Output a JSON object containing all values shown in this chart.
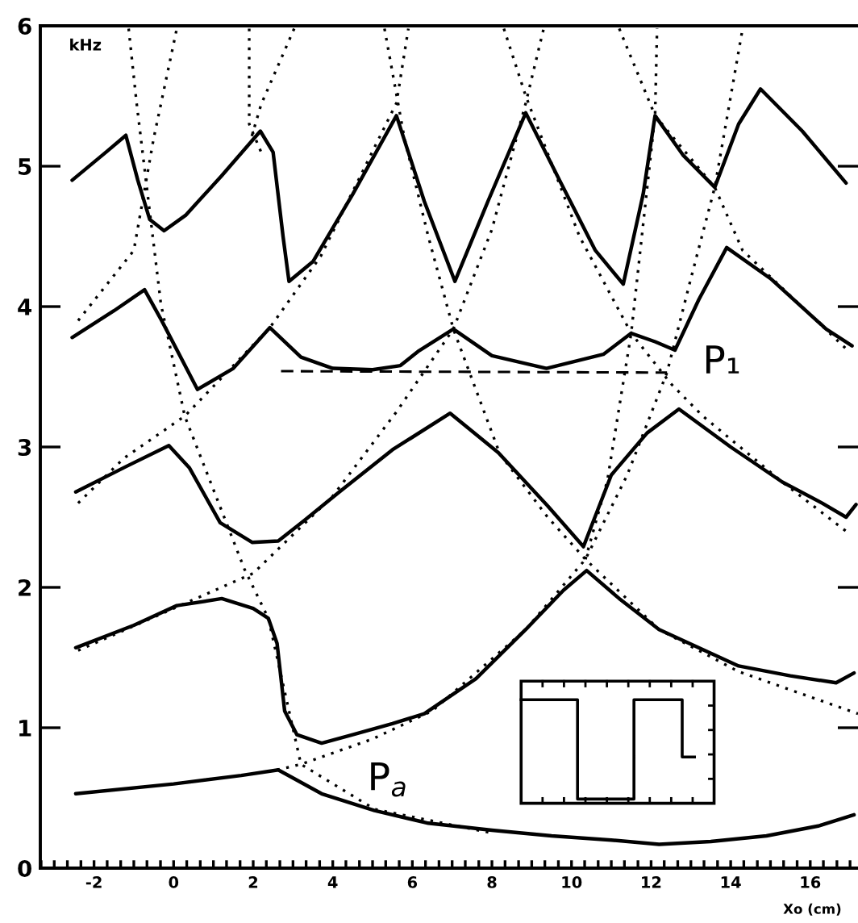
{
  "chart_data": {
    "type": "line",
    "xlabel": "Xo (cm)",
    "ylabel": "kHz",
    "xlim": [
      -3.35,
      17.2
    ],
    "ylim": [
      0,
      6
    ],
    "xticks": [
      {
        "value": -3.33,
        "label": null
      },
      {
        "value": -3,
        "label": null
      },
      {
        "value": -2.67,
        "label": null
      },
      {
        "value": -2.33,
        "label": null
      },
      -2,
      {
        "value": -1.67,
        "label": null
      },
      {
        "value": -1.33,
        "label": null
      },
      {
        "value": -1,
        "label": null
      },
      {
        "value": -0.67,
        "label": null
      },
      {
        "value": -0.33,
        "label": null
      },
      0,
      {
        "value": 0.33,
        "label": null
      },
      {
        "value": 0.67,
        "label": null
      },
      {
        "value": 1,
        "label": null
      },
      {
        "value": 1.33,
        "label": null
      },
      {
        "value": 1.67,
        "label": null
      },
      2,
      {
        "value": 2.33,
        "label": null
      },
      {
        "value": 2.67,
        "label": null
      },
      {
        "value": 3,
        "label": null
      },
      {
        "value": 3.33,
        "label": null
      },
      {
        "value": 3.67,
        "label": null
      },
      4,
      {
        "value": 4.33,
        "label": null
      },
      {
        "value": 4.67,
        "label": null
      },
      {
        "value": 5,
        "label": null
      },
      {
        "value": 5.33,
        "label": null
      },
      {
        "value": 5.67,
        "label": null
      },
      6,
      {
        "value": 6.33,
        "label": null
      },
      {
        "value": 6.67,
        "label": null
      },
      {
        "value": 7,
        "label": null
      },
      {
        "value": 7.33,
        "label": null
      },
      {
        "value": 7.67,
        "label": null
      },
      8,
      {
        "value": 8.33,
        "label": null
      },
      {
        "value": 8.67,
        "label": null
      },
      {
        "value": 9,
        "label": null
      },
      {
        "value": 9.33,
        "label": null
      },
      {
        "value": 9.67,
        "label": null
      },
      10,
      {
        "value": 10.33,
        "label": null
      },
      {
        "value": 10.67,
        "label": null
      },
      {
        "value": 11,
        "label": null
      },
      {
        "value": 11.33,
        "label": null
      },
      {
        "value": 11.67,
        "label": null
      },
      12,
      {
        "value": 12.33,
        "label": null
      },
      {
        "value": 12.67,
        "label": null
      },
      {
        "value": 13,
        "label": null
      },
      {
        "value": 13.33,
        "label": null
      },
      {
        "value": 13.67,
        "label": null
      },
      14,
      {
        "value": 14.33,
        "label": null
      },
      {
        "value": 14.67,
        "label": null
      },
      {
        "value": 15,
        "label": null
      },
      {
        "value": 15.33,
        "label": null
      },
      {
        "value": 15.67,
        "label": null
      },
      16,
      {
        "value": 16.33,
        "label": null
      },
      {
        "value": 16.67,
        "label": null
      },
      {
        "value": 17,
        "label": null
      }
    ],
    "yticks": [
      0,
      1,
      2,
      3,
      4,
      5,
      6
    ],
    "grid": false,
    "legend": false,
    "annotations": [
      "P₁",
      "P$_{a}$"
    ],
    "series": [
      {
        "line_style": "solid",
        "color": "#000000",
        "x": [
          -2.46,
          0,
          1.7,
          2.63,
          3.72,
          5.05,
          6.4,
          8,
          9.5,
          11,
          12.2,
          13.5,
          14.9,
          16.2,
          17.1
        ],
        "values": [
          0.53,
          0.6,
          0.66,
          0.7,
          0.53,
          0.41,
          0.32,
          0.27,
          0.23,
          0.2,
          0.17,
          0.19,
          0.23,
          0.3,
          0.38
        ]
      },
      {
        "line_style": "solid",
        "color": "#000000",
        "x": [
          -2.46,
          -1,
          0.08,
          1.21,
          2.0,
          2.38,
          2.6,
          2.79,
          3.1,
          3.72,
          4.5,
          5.5,
          6.3,
          7.6,
          8.85,
          9.8,
          10.38,
          11.2,
          12.2,
          14.2,
          15.5,
          16.65,
          17.1
        ],
        "values": [
          1.57,
          1.73,
          1.87,
          1.92,
          1.85,
          1.78,
          1.6,
          1.12,
          0.95,
          0.89,
          0.95,
          1.03,
          1.1,
          1.35,
          1.7,
          1.98,
          2.12,
          1.92,
          1.7,
          1.44,
          1.37,
          1.32,
          1.39
        ]
      },
      {
        "line_style": "solid",
        "color": "#000000",
        "x": [
          -2.46,
          -1.2,
          -0.12,
          0.4,
          1.17,
          1.98,
          2.63,
          3.3,
          4.12,
          5.5,
          6.95,
          8.16,
          9.4,
          10.3,
          11.0,
          11.9,
          12.7,
          14.0,
          15.3,
          16.3,
          16.9,
          17.15
        ],
        "values": [
          2.68,
          2.86,
          3.01,
          2.85,
          2.46,
          2.32,
          2.33,
          2.48,
          2.67,
          2.98,
          3.24,
          2.96,
          2.58,
          2.29,
          2.8,
          3.1,
          3.27,
          3.0,
          2.75,
          2.6,
          2.5,
          2.59
        ]
      },
      {
        "line_style": "solid",
        "color": "#000000",
        "x": [
          -2.55,
          -1.5,
          -0.73,
          -0.3,
          0.6,
          1.5,
          2.42,
          3.2,
          4.0,
          5.0,
          5.7,
          6.14,
          7.03,
          8.0,
          9.37,
          10.8,
          11.5,
          12.1,
          12.6,
          13.2,
          13.9,
          15.0,
          16.4,
          17.05
        ],
        "values": [
          3.78,
          3.97,
          4.12,
          3.9,
          3.41,
          3.56,
          3.85,
          3.64,
          3.56,
          3.55,
          3.58,
          3.68,
          3.84,
          3.65,
          3.56,
          3.66,
          3.81,
          3.75,
          3.69,
          4.05,
          4.42,
          4.2,
          3.84,
          3.72
        ]
      },
      {
        "line_style": "solid",
        "color": "#000000",
        "x": [
          -2.55,
          -1.7,
          -1.2,
          -0.9,
          -0.6,
          -0.24,
          0.3,
          1.2,
          2.18,
          2.5,
          2.75,
          2.9,
          3.5,
          4.5,
          5.6,
          6.3,
          7.07,
          7.9,
          8.85,
          9.7,
          10.6,
          11.3,
          11.8,
          12.1,
          12.8,
          13.6,
          14.2,
          14.75,
          15.8,
          16.9
        ],
        "values": [
          4.9,
          5.1,
          5.22,
          4.9,
          4.62,
          4.54,
          4.65,
          4.93,
          5.25,
          5.1,
          4.5,
          4.18,
          4.32,
          4.8,
          5.36,
          4.75,
          4.18,
          4.75,
          5.38,
          4.9,
          4.4,
          4.16,
          4.8,
          5.36,
          5.08,
          4.85,
          5.3,
          5.55,
          5.25,
          4.88
        ]
      },
      {
        "line_style": "dashed",
        "color": "#000000",
        "x": [
          2.7,
          12.4
        ],
        "values": [
          3.54,
          3.53
        ]
      },
      {
        "line_style": "dotted",
        "color": "#000000",
        "x": [
          -2.4,
          0,
          2,
          4,
          5.6,
          7.03,
          8.0,
          8.85,
          9.3
        ],
        "values": [
          1.55,
          1.85,
          2.1,
          2.65,
          3.25,
          3.84,
          4.55,
          5.45,
          5.98
        ]
      },
      {
        "line_style": "dotted",
        "color": "#000000",
        "x": [
          5.3,
          5.8,
          6.4,
          7.03,
          8.2,
          9.4,
          10.35,
          12.2,
          14.2,
          17.2
        ],
        "values": [
          5.98,
          5.2,
          4.5,
          3.84,
          2.95,
          2.5,
          2.2,
          1.7,
          1.4,
          1.1
        ]
      },
      {
        "line_style": "dotted",
        "color": "#000000",
        "x": [
          2.6,
          3.2,
          5,
          6.5,
          8.85,
          10.35,
          11.4,
          12.4,
          13.0,
          13.6,
          14.3
        ],
        "values": [
          0.7,
          0.74,
          0.92,
          1.12,
          1.7,
          2.2,
          2.8,
          3.53,
          4.2,
          4.85,
          5.98
        ]
      },
      {
        "line_style": "dotted",
        "color": "#000000",
        "x": [
          -1.13,
          -0.93,
          -0.32,
          0.28,
          1.78,
          2.38,
          3.2,
          5.05,
          8
        ],
        "values": [
          5.98,
          5.45,
          4.02,
          3.22,
          2.13,
          1.78,
          0.74,
          0.42,
          0.25
        ]
      },
      {
        "line_style": "dotted",
        "color": "#000000",
        "x": [
          -2.4,
          -1.25,
          0.28,
          2.42,
          3.7,
          5.6,
          5.9
        ],
        "values": [
          2.6,
          2.92,
          3.22,
          3.85,
          4.36,
          5.45,
          5.98
        ]
      },
      {
        "line_style": "dotted",
        "color": "#000000",
        "x": [
          -2.4,
          -1.0,
          -0.5,
          0.08
        ],
        "values": [
          3.9,
          4.4,
          5.2,
          5.98
        ]
      },
      {
        "line_style": "dotted",
        "color": "#000000",
        "x": [
          3.03,
          2.2,
          1.95
        ],
        "values": [
          5.98,
          5.44,
          5.2
        ]
      },
      {
        "line_style": "dotted",
        "color": "#000000",
        "x": [
          1.9,
          1.9,
          2.2
        ],
        "values": [
          5.98,
          5.3,
          5.1
        ]
      },
      {
        "line_style": "dotted",
        "color": "#000000",
        "x": [
          8.3,
          8.85,
          10.2,
          11.5,
          12.5,
          13.3,
          15.3,
          16.9
        ],
        "values": [
          5.98,
          5.5,
          4.5,
          3.81,
          3.45,
          3.22,
          2.75,
          2.4
        ]
      },
      {
        "line_style": "dotted",
        "color": "#000000",
        "x": [
          10.35,
          10.9,
          11.5,
          12.1,
          12.15
        ],
        "values": [
          2.2,
          2.76,
          3.81,
          5.36,
          5.98
        ]
      },
      {
        "line_style": "dotted",
        "color": "#000000",
        "x": [
          11.2,
          12.1,
          13.6,
          14.3,
          16.9
        ],
        "values": [
          5.98,
          5.36,
          4.85,
          4.4,
          3.7
        ]
      }
    ]
  }
}
